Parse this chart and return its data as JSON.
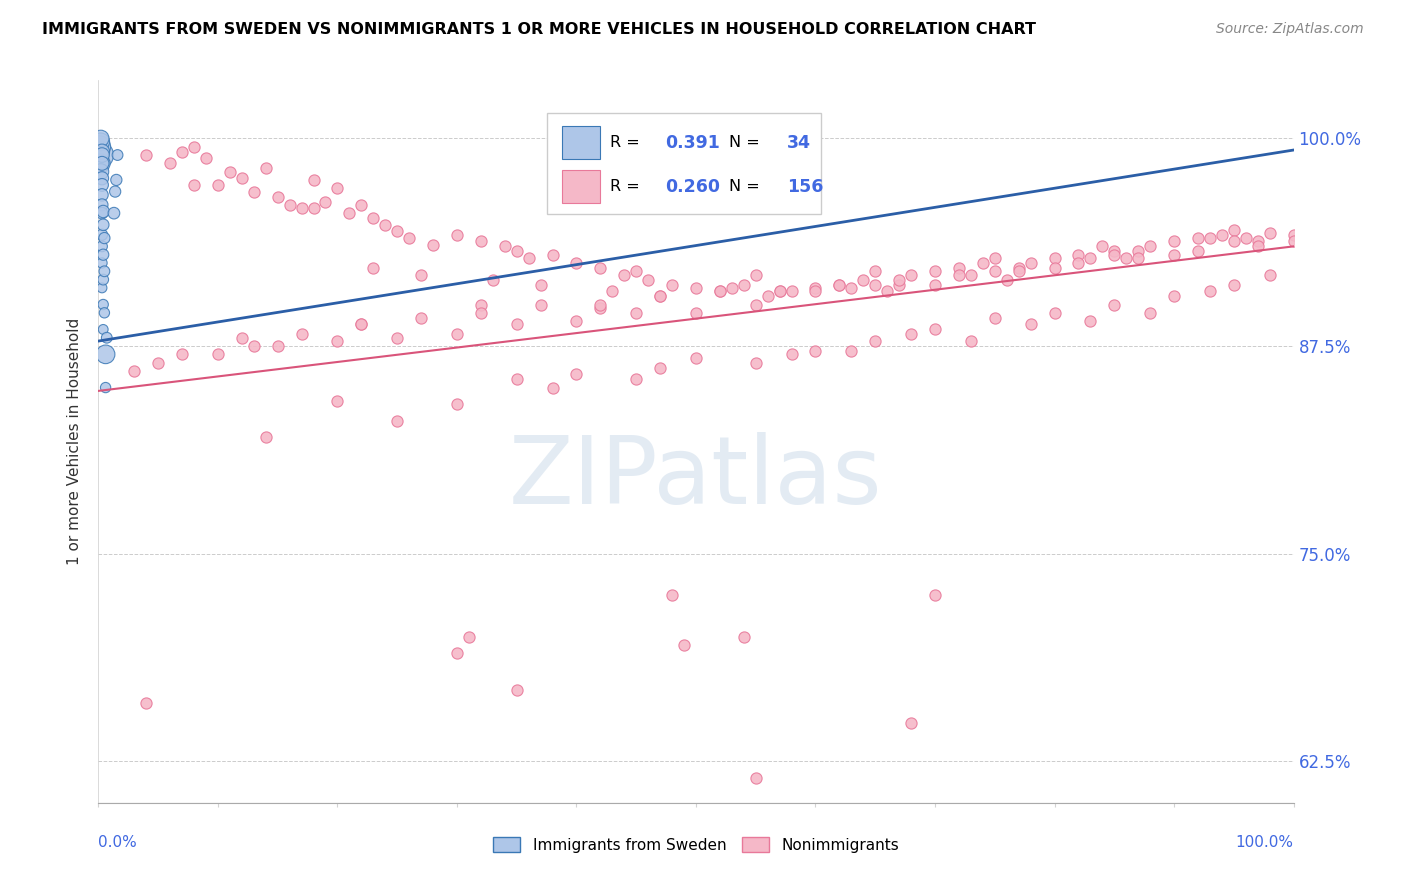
{
  "title": "IMMIGRANTS FROM SWEDEN VS NONIMMIGRANTS 1 OR MORE VEHICLES IN HOUSEHOLD CORRELATION CHART",
  "source": "Source: ZipAtlas.com",
  "ylabel": "1 or more Vehicles in Household",
  "ytick_labels": [
    "62.5%",
    "75.0%",
    "87.5%",
    "100.0%"
  ],
  "ytick_values": [
    0.625,
    0.75,
    0.875,
    1.0
  ],
  "legend_blue_r_val": "0.391",
  "legend_blue_n_val": "34",
  "legend_pink_r_val": "0.260",
  "legend_pink_n_val": "156",
  "legend_label_blue": "Immigrants from Sweden",
  "legend_label_pink": "Nonimmigrants",
  "blue_color": "#aec6e8",
  "blue_edge_color": "#3a78b5",
  "blue_line_color": "#2b5ea7",
  "pink_color": "#f5b8c8",
  "pink_edge_color": "#e8799a",
  "pink_line_color": "#d9547a",
  "watermark": "ZIPatlas",
  "xlim": [
    0.0,
    1.0
  ],
  "ylim": [
    0.6,
    1.035
  ],
  "blue_line_y0": 0.878,
  "blue_line_y1": 0.993,
  "pink_line_y0": 0.848,
  "pink_line_y1": 0.935,
  "blue_scatter_x": [
    0.001,
    0.001,
    0.002,
    0.002,
    0.002,
    0.002,
    0.003,
    0.003,
    0.003,
    0.003,
    0.003,
    0.003,
    0.003,
    0.003,
    0.003,
    0.003,
    0.003,
    0.003,
    0.004,
    0.004,
    0.004,
    0.004,
    0.004,
    0.004,
    0.005,
    0.005,
    0.005,
    0.006,
    0.006,
    0.007,
    0.013,
    0.014,
    0.015,
    0.016
  ],
  "blue_scatter_y": [
    0.99,
    0.995,
    0.985,
    0.998,
    1.0,
    0.98,
    0.992,
    0.99,
    0.985,
    0.976,
    0.972,
    0.966,
    0.96,
    0.955,
    0.942,
    0.935,
    0.925,
    0.91,
    0.956,
    0.948,
    0.93,
    0.915,
    0.9,
    0.885,
    0.94,
    0.92,
    0.895,
    0.87,
    0.85,
    0.88,
    0.955,
    0.968,
    0.975,
    0.99
  ],
  "blue_scatter_sizes": [
    400,
    250,
    180,
    160,
    140,
    130,
    120,
    110,
    100,
    90,
    85,
    80,
    75,
    70,
    65,
    60,
    55,
    50,
    80,
    70,
    65,
    60,
    55,
    50,
    65,
    60,
    55,
    180,
    55,
    60,
    70,
    65,
    65,
    60
  ],
  "pink_scatter_x": [
    0.04,
    0.06,
    0.07,
    0.08,
    0.09,
    0.1,
    0.11,
    0.12,
    0.13,
    0.14,
    0.15,
    0.16,
    0.17,
    0.18,
    0.19,
    0.2,
    0.21,
    0.22,
    0.23,
    0.24,
    0.25,
    0.26,
    0.28,
    0.3,
    0.32,
    0.34,
    0.35,
    0.36,
    0.38,
    0.4,
    0.42,
    0.44,
    0.45,
    0.46,
    0.48,
    0.5,
    0.52,
    0.54,
    0.55,
    0.56,
    0.58,
    0.6,
    0.62,
    0.64,
    0.65,
    0.66,
    0.68,
    0.7,
    0.72,
    0.74,
    0.75,
    0.76,
    0.78,
    0.8,
    0.82,
    0.84,
    0.85,
    0.86,
    0.88,
    0.9,
    0.92,
    0.94,
    0.95,
    0.96,
    0.98,
    1.0,
    0.97,
    0.93,
    0.87,
    0.83,
    0.77,
    0.73,
    0.67,
    0.63,
    0.57,
    0.53,
    0.47,
    0.43,
    0.37,
    0.33,
    0.27,
    0.23,
    0.18,
    0.08,
    0.55,
    0.45,
    0.35,
    0.25,
    0.15,
    0.05,
    0.5,
    0.4,
    0.3,
    0.2,
    0.1,
    0.6,
    0.7,
    0.8,
    0.9,
    1.0,
    0.65,
    0.75,
    0.85,
    0.95,
    0.03,
    0.13,
    0.22,
    0.32,
    0.42,
    0.52,
    0.62,
    0.72,
    0.82,
    0.92,
    0.07,
    0.17,
    0.27,
    0.37,
    0.47,
    0.57,
    0.67,
    0.77,
    0.87,
    0.97,
    0.12,
    0.22,
    0.32,
    0.42,
    0.3,
    0.38,
    0.25,
    0.14,
    0.47,
    0.35,
    0.6,
    0.5,
    0.4,
    0.55,
    0.45,
    0.2,
    0.7,
    0.58,
    0.65,
    0.75,
    0.8,
    0.68,
    0.85,
    0.9,
    0.78,
    0.95,
    0.88,
    0.93,
    0.73,
    0.83,
    0.63,
    0.98
  ],
  "pink_scatter_y": [
    0.99,
    0.985,
    0.992,
    0.995,
    0.988,
    0.972,
    0.98,
    0.976,
    0.968,
    0.982,
    0.965,
    0.96,
    0.958,
    0.975,
    0.962,
    0.97,
    0.955,
    0.96,
    0.952,
    0.948,
    0.944,
    0.94,
    0.936,
    0.942,
    0.938,
    0.935,
    0.932,
    0.928,
    0.93,
    0.925,
    0.922,
    0.918,
    0.92,
    0.915,
    0.912,
    0.91,
    0.908,
    0.912,
    0.918,
    0.905,
    0.908,
    0.91,
    0.912,
    0.915,
    0.92,
    0.908,
    0.918,
    0.92,
    0.922,
    0.925,
    0.928,
    0.915,
    0.925,
    0.928,
    0.93,
    0.935,
    0.932,
    0.928,
    0.935,
    0.938,
    0.94,
    0.942,
    0.945,
    0.94,
    0.943,
    0.942,
    0.938,
    0.94,
    0.932,
    0.928,
    0.922,
    0.918,
    0.912,
    0.91,
    0.908,
    0.91,
    0.905,
    0.908,
    0.912,
    0.915,
    0.918,
    0.922,
    0.958,
    0.972,
    0.9,
    0.895,
    0.888,
    0.88,
    0.875,
    0.865,
    0.895,
    0.89,
    0.882,
    0.878,
    0.87,
    0.908,
    0.912,
    0.922,
    0.93,
    0.938,
    0.912,
    0.92,
    0.93,
    0.938,
    0.86,
    0.875,
    0.888,
    0.9,
    0.898,
    0.908,
    0.912,
    0.918,
    0.925,
    0.932,
    0.87,
    0.882,
    0.892,
    0.9,
    0.905,
    0.908,
    0.915,
    0.92,
    0.928,
    0.935,
    0.88,
    0.888,
    0.895,
    0.9,
    0.84,
    0.85,
    0.83,
    0.82,
    0.862,
    0.855,
    0.872,
    0.868,
    0.858,
    0.865,
    0.855,
    0.842,
    0.885,
    0.87,
    0.878,
    0.892,
    0.895,
    0.882,
    0.9,
    0.905,
    0.888,
    0.912,
    0.895,
    0.908,
    0.878,
    0.89,
    0.872,
    0.918
  ],
  "low_pink_x": [
    0.04,
    0.3,
    0.31,
    0.35,
    0.48,
    0.49,
    0.54,
    0.55,
    0.68,
    0.7
  ],
  "low_pink_y": [
    0.66,
    0.69,
    0.7,
    0.668,
    0.725,
    0.695,
    0.7,
    0.615,
    0.648,
    0.725
  ]
}
